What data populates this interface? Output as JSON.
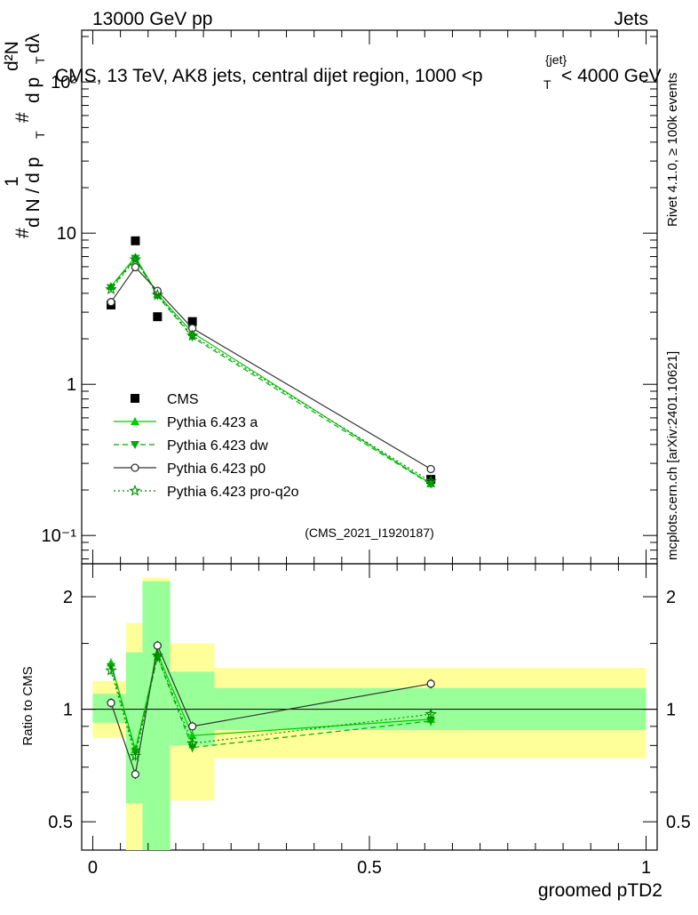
{
  "header": {
    "left_label": "13000 GeV pp",
    "right_label": "Jets"
  },
  "side_labels": {
    "rivet": "Rivet 4.1.0, ≥ 100k events",
    "mcplots": "mcplots.cern.ch [arXiv:2401.10621]"
  },
  "chart_data": [
    {
      "type": "line",
      "title": "CMS, 13 TeV, AK8 jets, central dijet region, 1000 <p_T^{jet}< 4000 GeV",
      "title_parts": {
        "prefix": "CMS, 13 TeV, AK8 jets, central dijet region, 1000 <p",
        "sub": "T",
        "sup": "{jet}",
        "suffix": "< 4000 GeV"
      },
      "ylabel": "1/(dN/dp_T) d²N/(dp_T dλ)",
      "ylabel_parts": {
        "hash": "#",
        "one": "1",
        "dN": "d N / d p",
        "T": "T",
        "d2N": "d²N",
        "dp": "d p",
        "dl": "dλ"
      },
      "yscale": "log",
      "ylim": [
        0.065,
        220
      ],
      "xlim": [
        -0.02,
        1.02
      ],
      "y_ticks": [
        {
          "value": 0.1,
          "label": "10⁻¹"
        },
        {
          "value": 1,
          "label": "1"
        },
        {
          "value": 10,
          "label": "10"
        },
        {
          "value": 100,
          "label": "10²"
        }
      ],
      "watermark": "(CMS_2021_I1920187)",
      "legend_position": "lower-left",
      "series": [
        {
          "name": "CMS",
          "style": "data",
          "color": "#000000",
          "x": [
            0.033,
            0.077,
            0.117,
            0.18,
            0.611
          ],
          "y": [
            3.35,
            8.9,
            2.8,
            2.6,
            0.235
          ]
        },
        {
          "name": "Pythia 6.423 a",
          "style": "solid",
          "marker": "triangle-up",
          "color": "#00cc00",
          "x": [
            0.033,
            0.077,
            0.117,
            0.18,
            0.611
          ],
          "y": [
            4.45,
            6.95,
            3.95,
            2.2,
            0.22
          ]
        },
        {
          "name": "Pythia 6.423 dw",
          "style": "dashed",
          "marker": "triangle-down",
          "color": "#00aa00",
          "x": [
            0.033,
            0.077,
            0.117,
            0.18,
            0.611
          ],
          "y": [
            4.35,
            6.8,
            3.85,
            2.05,
            0.218
          ]
        },
        {
          "name": "Pythia 6.423 p0",
          "style": "solid",
          "marker": "circle-open",
          "color": "#333333",
          "x": [
            0.033,
            0.077,
            0.117,
            0.18,
            0.611
          ],
          "y": [
            3.5,
            5.95,
            4.15,
            2.35,
            0.275
          ]
        },
        {
          "name": "Pythia 6.423 pro-q2o",
          "style": "dotted",
          "marker": "star-open",
          "color": "#008800",
          "x": [
            0.033,
            0.077,
            0.117,
            0.18,
            0.611
          ],
          "y": [
            4.25,
            6.7,
            3.9,
            2.1,
            0.228
          ]
        }
      ]
    },
    {
      "type": "line",
      "ylabel": "Ratio to CMS",
      "xlabel": "groomed pTD2",
      "yscale": "log",
      "ylim": [
        0.42,
        2.45
      ],
      "xlim": [
        -0.02,
        1.02
      ],
      "y_ticks": [
        {
          "value": 0.5,
          "label": "0.5"
        },
        {
          "value": 1,
          "label": "1"
        },
        {
          "value": 2,
          "label": "2"
        }
      ],
      "x_ticks": [
        {
          "value": 0,
          "label": "0"
        },
        {
          "value": 0.5,
          "label": "0.5"
        },
        {
          "value": 1,
          "label": "1"
        }
      ],
      "bands": [
        {
          "x0": 0.0,
          "x1": 0.06,
          "green": [
            0.92,
            1.1
          ],
          "yellow": [
            0.84,
            1.19
          ]
        },
        {
          "x0": 0.06,
          "x1": 0.09,
          "green": [
            0.56,
            1.42
          ],
          "yellow": [
            0.35,
            1.7
          ]
        },
        {
          "x0": 0.09,
          "x1": 0.14,
          "green": [
            0.35,
            2.2
          ],
          "yellow": [
            0.35,
            2.25
          ]
        },
        {
          "x0": 0.14,
          "x1": 0.22,
          "green": [
            0.8,
            1.26
          ],
          "yellow": [
            0.57,
            1.5
          ]
        },
        {
          "x0": 0.22,
          "x1": 1.0,
          "green": [
            0.88,
            1.14
          ],
          "yellow": [
            0.74,
            1.29
          ]
        }
      ],
      "band_colors": {
        "green": "#99ff99",
        "yellow": "#ffff99"
      },
      "series": [
        {
          "name": "Pythia 6.423 a",
          "x": [
            0.033,
            0.077,
            0.117,
            0.18,
            0.611
          ],
          "y": [
            1.33,
            0.78,
            1.41,
            0.85,
            0.94
          ]
        },
        {
          "name": "Pythia 6.423 dw",
          "x": [
            0.033,
            0.077,
            0.117,
            0.18,
            0.611
          ],
          "y": [
            1.3,
            0.77,
            1.38,
            0.79,
            0.93
          ]
        },
        {
          "name": "Pythia 6.423 p0",
          "x": [
            0.033,
            0.077,
            0.117,
            0.18,
            0.611
          ],
          "y": [
            1.04,
            0.67,
            1.48,
            0.9,
            1.17
          ]
        },
        {
          "name": "Pythia 6.423 pro-q2o",
          "x": [
            0.033,
            0.077,
            0.117,
            0.18,
            0.611
          ],
          "y": [
            1.27,
            0.75,
            1.39,
            0.81,
            0.97
          ]
        }
      ]
    }
  ]
}
